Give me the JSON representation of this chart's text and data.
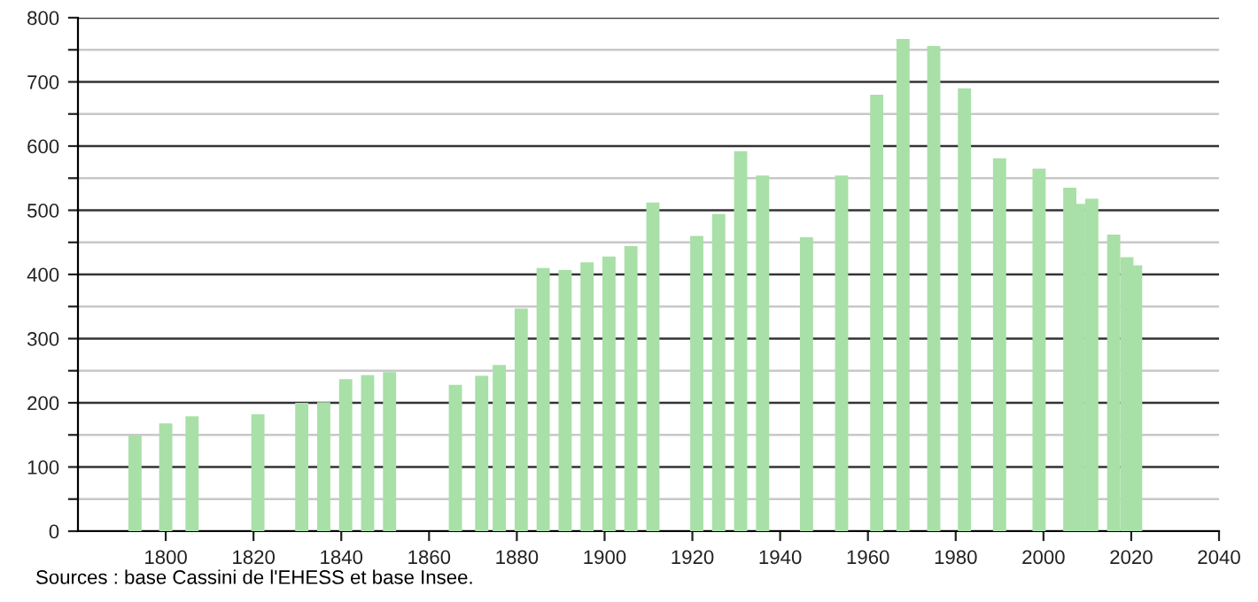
{
  "chart_data": {
    "type": "bar",
    "annotations": [
      "Sources : base Cassini de l'EHESS et base Insee."
    ],
    "x": [
      1793,
      1800,
      1806,
      1821,
      1831,
      1836,
      1841,
      1846,
      1851,
      1866,
      1872,
      1876,
      1881,
      1886,
      1891,
      1896,
      1901,
      1906,
      1911,
      1921,
      1926,
      1931,
      1936,
      1946,
      1954,
      1962,
      1968,
      1975,
      1982,
      1990,
      1999,
      2006,
      2008,
      2011,
      2016,
      2019,
      2021
    ],
    "values": [
      149,
      168,
      179,
      182,
      200,
      201,
      237,
      243,
      248,
      228,
      242,
      259,
      347,
      410,
      407,
      419,
      428,
      444,
      512,
      460,
      494,
      592,
      554,
      458,
      554,
      680,
      767,
      756,
      690,
      581,
      565,
      535,
      510,
      518,
      462,
      427,
      414
    ],
    "color": "#a8e0a8",
    "xlim": [
      1780,
      2040
    ],
    "xticks": [
      1800,
      1820,
      1840,
      1860,
      1880,
      1900,
      1920,
      1940,
      1960,
      1980,
      2000,
      2020,
      2040
    ],
    "ylim": [
      0,
      800
    ],
    "yticks": [
      0,
      {
        "value": 50,
        "label": null
      },
      100,
      {
        "value": 150,
        "label": null
      },
      200,
      {
        "value": 250,
        "label": null
      },
      300,
      {
        "value": 350,
        "label": null
      },
      400,
      {
        "value": 450,
        "label": null
      },
      500,
      {
        "value": 550,
        "label": null
      },
      600,
      {
        "value": 650,
        "label": null
      },
      700,
      {
        "value": 750,
        "label": null
      },
      800
    ],
    "grid": "y"
  }
}
